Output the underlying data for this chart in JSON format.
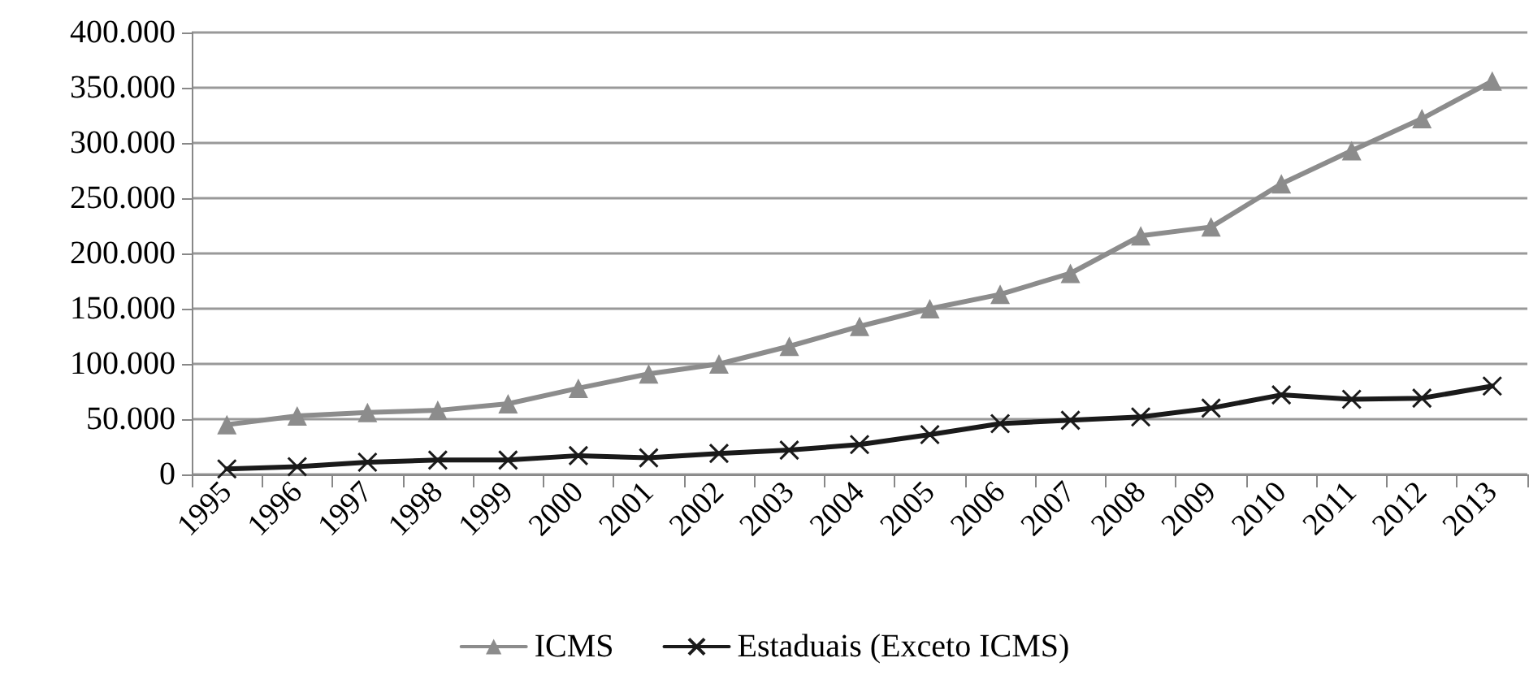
{
  "chart_data": {
    "type": "line",
    "categories": [
      "1995",
      "1996",
      "1997",
      "1998",
      "1999",
      "2000",
      "2001",
      "2002",
      "2003",
      "2004",
      "2005",
      "2006",
      "2007",
      "2008",
      "2009",
      "2010",
      "2011",
      "2012",
      "2013"
    ],
    "series": [
      {
        "name": "ICMS",
        "color": "#8c8c8c",
        "marker": "triangle",
        "values": [
          45000,
          53000,
          56000,
          58000,
          64000,
          78000,
          91000,
          100000,
          116000,
          134000,
          150000,
          163000,
          182000,
          216000,
          224000,
          263000,
          293000,
          322000,
          356000
        ]
      },
      {
        "name": "Estaduais (Exceto ICMS)",
        "color": "#1a1a1a",
        "marker": "cross",
        "values": [
          5000,
          7000,
          11000,
          13000,
          13000,
          17000,
          15000,
          19000,
          22000,
          27000,
          36000,
          46000,
          49000,
          52000,
          60000,
          72000,
          68000,
          69000,
          80000
        ]
      }
    ],
    "ylim": [
      0,
      400000
    ],
    "yticks": [
      {
        "value": 0,
        "label": "0"
      },
      {
        "value": 50000,
        "label": "50.000"
      },
      {
        "value": 100000,
        "label": "100.000"
      },
      {
        "value": 150000,
        "label": "150.000"
      },
      {
        "value": 200000,
        "label": "200.000"
      },
      {
        "value": 250000,
        "label": "250.000"
      },
      {
        "value": 300000,
        "label": "300.000"
      },
      {
        "value": 350000,
        "label": "350.000"
      },
      {
        "value": 400000,
        "label": "400.000"
      }
    ],
    "grid": "y",
    "legend": "bottom"
  }
}
